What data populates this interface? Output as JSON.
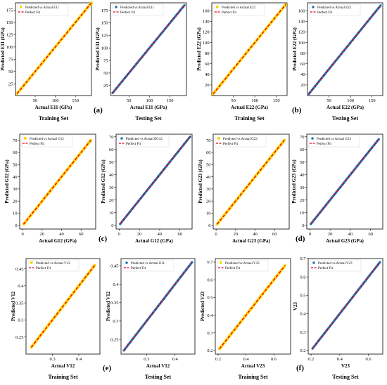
{
  "colors": {
    "train_marker": "#ffd400",
    "test_marker": "#1f77b4",
    "fit_line": "#e3001b",
    "axis": "#000000"
  },
  "chart_data": [
    {
      "type": "scatter",
      "xlabel": "Actual E11 (GPa)",
      "ylabel": "Predicted E11 (GPa)",
      "footer": "Training Set",
      "panel_label": "",
      "xlim": [
        1,
        190
      ],
      "ylim": [
        1,
        190
      ],
      "xticks": [
        50,
        100,
        150
      ],
      "yticks": [
        25,
        50,
        75,
        100,
        125,
        150,
        175
      ],
      "marker": "square",
      "marker_color": "train",
      "series": [
        {
          "name": "Predicted vs Actual E11",
          "kind": "points",
          "values": [
            [
              5,
              5
            ],
            [
              190,
              190
            ]
          ]
        },
        {
          "name": "Perfect Fit",
          "kind": "line",
          "values": [
            [
              5,
              5
            ],
            [
              190,
              190
            ]
          ]
        }
      ]
    },
    {
      "type": "scatter",
      "xlabel": "Actual E11 (GPa)",
      "ylabel": "Predicted E11 (GPa)",
      "footer": "Testing Set",
      "panel_label": "(a)",
      "xlim": [
        5,
        190
      ],
      "ylim": [
        5,
        190
      ],
      "xticks": [
        50,
        100,
        150
      ],
      "yticks": [
        25,
        50,
        75,
        100,
        125,
        150,
        175
      ],
      "marker": "circle",
      "marker_color": "test",
      "series": [
        {
          "name": "Predicted vs Actual E11",
          "kind": "points",
          "values": [
            [
              10,
              10
            ],
            [
              185,
              185
            ]
          ]
        },
        {
          "name": "Perfect Fit",
          "kind": "line",
          "values": [
            [
              10,
              10
            ],
            [
              185,
              185
            ]
          ]
        }
      ]
    },
    {
      "type": "scatter",
      "xlabel": "Actual E22 (GPa)",
      "ylabel": "Predicted E22 (GPa)",
      "footer": "Training Set",
      "panel_label": "",
      "xlim": [
        0,
        175
      ],
      "ylim": [
        0,
        175
      ],
      "xticks": [
        50,
        100,
        150
      ],
      "yticks": [
        20,
        40,
        60,
        80,
        100,
        120,
        140,
        160
      ],
      "marker": "square",
      "marker_color": "train",
      "series": [
        {
          "name": "Predicted vs Actual E22",
          "kind": "points",
          "values": [
            [
              3,
              3
            ],
            [
              172,
              172
            ]
          ]
        },
        {
          "name": "Perfect Fit",
          "kind": "line",
          "values": [
            [
              3,
              3
            ],
            [
              172,
              172
            ]
          ]
        }
      ]
    },
    {
      "type": "scatter",
      "xlabel": "Actual E22 (GPa)",
      "ylabel": "Predicted E22 (GPa)",
      "footer": "Testing Set",
      "panel_label": "(b)",
      "xlim": [
        0,
        175
      ],
      "ylim": [
        0,
        175
      ],
      "xticks": [
        50,
        100,
        150
      ],
      "yticks": [
        20,
        40,
        60,
        80,
        100,
        120,
        140,
        160
      ],
      "marker": "circle",
      "marker_color": "test",
      "series": [
        {
          "name": "Predicted vs Actual E22",
          "kind": "points",
          "values": [
            [
              3,
              3
            ],
            [
              170,
              170
            ]
          ]
        },
        {
          "name": "Perfect Fit",
          "kind": "line",
          "values": [
            [
              3,
              3
            ],
            [
              170,
              170
            ]
          ]
        }
      ]
    },
    {
      "type": "scatter",
      "xlabel": "Actual G12 (GPa)",
      "ylabel": "Predicted G12 (GPa)",
      "footer": "",
      "panel_label": "",
      "xlim": [
        -3,
        75
      ],
      "ylim": [
        -3,
        75
      ],
      "xticks": [
        0,
        20,
        40,
        60
      ],
      "yticks": [
        0,
        10,
        20,
        30,
        40,
        50,
        60,
        70
      ],
      "marker": "square",
      "marker_color": "train",
      "series": [
        {
          "name": "Predicted vs Actual G12",
          "kind": "points",
          "values": [
            [
              1,
              1
            ],
            [
              70,
              70
            ]
          ]
        },
        {
          "name": "Perfect Fit",
          "kind": "line",
          "values": [
            [
              1,
              1
            ],
            [
              70,
              70
            ]
          ]
        }
      ]
    },
    {
      "type": "scatter",
      "xlabel": "Actual G12 (GPa)",
      "ylabel": "Predicted G12 (GPa)",
      "footer": "",
      "panel_label": "(c)",
      "xlim": [
        -3,
        72
      ],
      "ylim": [
        -3,
        72
      ],
      "xticks": [
        0,
        20,
        40,
        60
      ],
      "yticks": [
        0,
        10,
        20,
        30,
        40,
        50,
        60,
        70
      ],
      "marker": "circle",
      "marker_color": "test",
      "series": [
        {
          "name": "Predicted vs Actual EG12",
          "kind": "points",
          "values": [
            [
              1,
              1
            ],
            [
              70,
              70
            ]
          ]
        },
        {
          "name": "Perfect Fit",
          "kind": "line",
          "values": [
            [
              1,
              1
            ],
            [
              70,
              70
            ]
          ]
        }
      ]
    },
    {
      "type": "scatter",
      "xlabel": "Actual G23 (GPa)",
      "ylabel": "Predicted G23 (GPa)",
      "footer": "",
      "panel_label": "",
      "xlim": [
        -3,
        75
      ],
      "ylim": [
        -3,
        75
      ],
      "xticks": [
        0,
        20,
        40,
        60
      ],
      "yticks": [
        0,
        10,
        20,
        30,
        40,
        50,
        60,
        70
      ],
      "marker": "square",
      "marker_color": "train",
      "series": [
        {
          "name": "Predicted vs Actual G23",
          "kind": "points",
          "values": [
            [
              1,
              1
            ],
            [
              70,
              70
            ]
          ]
        },
        {
          "name": "Perfect Fit",
          "kind": "line",
          "values": [
            [
              1,
              1
            ],
            [
              70,
              70
            ]
          ]
        }
      ]
    },
    {
      "type": "scatter",
      "xlabel": "Actual G23 (GPa)",
      "ylabel": "Predicted G23 (GPa)",
      "footer": "",
      "panel_label": "(d)",
      "xlim": [
        -3,
        72
      ],
      "ylim": [
        -3,
        72
      ],
      "xticks": [
        0,
        20,
        40,
        60
      ],
      "yticks": [
        0,
        10,
        20,
        30,
        40,
        50,
        60,
        70
      ],
      "marker": "circle",
      "marker_color": "test",
      "series": [
        {
          "name": "Predicted vs Actual G23",
          "kind": "points",
          "values": [
            [
              1,
              1
            ],
            [
              68,
              68
            ]
          ]
        },
        {
          "name": "Perfect Fit",
          "kind": "line",
          "values": [
            [
              1,
              1
            ],
            [
              68,
              68
            ]
          ]
        }
      ]
    },
    {
      "type": "scatter",
      "xlabel": "Actual V12",
      "ylabel": "Predicted V12",
      "footer": "Training Set",
      "panel_label": "",
      "xlim": [
        0.2,
        0.48
      ],
      "ylim": [
        0.2,
        0.48
      ],
      "xticks": [
        0.3,
        0.4
      ],
      "yticks": [
        0.25,
        0.3,
        0.35,
        0.4,
        0.45
      ],
      "marker": "square",
      "marker_color": "train",
      "series": [
        {
          "name": "Predicted vs Actual V12",
          "kind": "points",
          "values": [
            [
              0.22,
              0.22
            ],
            [
              0.46,
              0.46
            ]
          ]
        },
        {
          "name": "Perfect Fit",
          "kind": "line",
          "values": [
            [
              0.22,
              0.22
            ],
            [
              0.46,
              0.46
            ]
          ]
        }
      ]
    },
    {
      "type": "scatter",
      "xlabel": "Actual V12",
      "ylabel": "Predicted V12",
      "footer": "Testing Set",
      "panel_label": "(e)",
      "xlim": [
        0.21,
        0.47
      ],
      "ylim": [
        0.21,
        0.47
      ],
      "xticks": [
        0.3,
        0.4
      ],
      "yticks": [
        0.25,
        0.3,
        0.35,
        0.4,
        0.45
      ],
      "marker": "circle",
      "marker_color": "test",
      "series": [
        {
          "name": "Predicted vs Actual E11",
          "kind": "points",
          "values": [
            [
              0.22,
              0.22
            ],
            [
              0.46,
              0.46
            ]
          ]
        },
        {
          "name": "Perfect Fit",
          "kind": "line",
          "values": [
            [
              0.22,
              0.22
            ],
            [
              0.46,
              0.46
            ]
          ]
        }
      ]
    },
    {
      "type": "scatter",
      "xlabel": "Actual V23",
      "ylabel": "Predicted V23",
      "footer": "Training Set",
      "panel_label": "",
      "xlim": [
        0.18,
        0.72
      ],
      "ylim": [
        0.18,
        0.72
      ],
      "xticks": [
        0.2,
        0.4,
        0.6
      ],
      "yticks": [
        0.2,
        0.3,
        0.4,
        0.5,
        0.6,
        0.7
      ],
      "marker": "square",
      "marker_color": "train",
      "series": [
        {
          "name": "Predicted vs Actual V23",
          "kind": "points",
          "values": [
            [
              0.21,
              0.21
            ],
            [
              0.68,
              0.68
            ]
          ]
        },
        {
          "name": "Perfect Fit",
          "kind": "line",
          "values": [
            [
              0.21,
              0.21
            ],
            [
              0.68,
              0.68
            ]
          ]
        }
      ]
    },
    {
      "type": "scatter",
      "xlabel": "V23",
      "ylabel": "V23",
      "footer": "Testing Set",
      "panel_label": "(f)",
      "xlim": [
        0.18,
        0.7
      ],
      "ylim": [
        0.18,
        0.7
      ],
      "xticks": [
        0.2,
        0.4,
        0.6
      ],
      "yticks": [
        0.2,
        0.3,
        0.4,
        0.5,
        0.6,
        0.7
      ],
      "marker": "circle",
      "marker_color": "test",
      "series": [
        {
          "name": "Predicted vs Actual V23",
          "kind": "points",
          "values": [
            [
              0.21,
              0.21
            ],
            [
              0.68,
              0.68
            ]
          ]
        },
        {
          "name": "Perfect Fit",
          "kind": "line",
          "values": [
            [
              0.21,
              0.21
            ],
            [
              0.68,
              0.68
            ]
          ]
        }
      ]
    }
  ]
}
